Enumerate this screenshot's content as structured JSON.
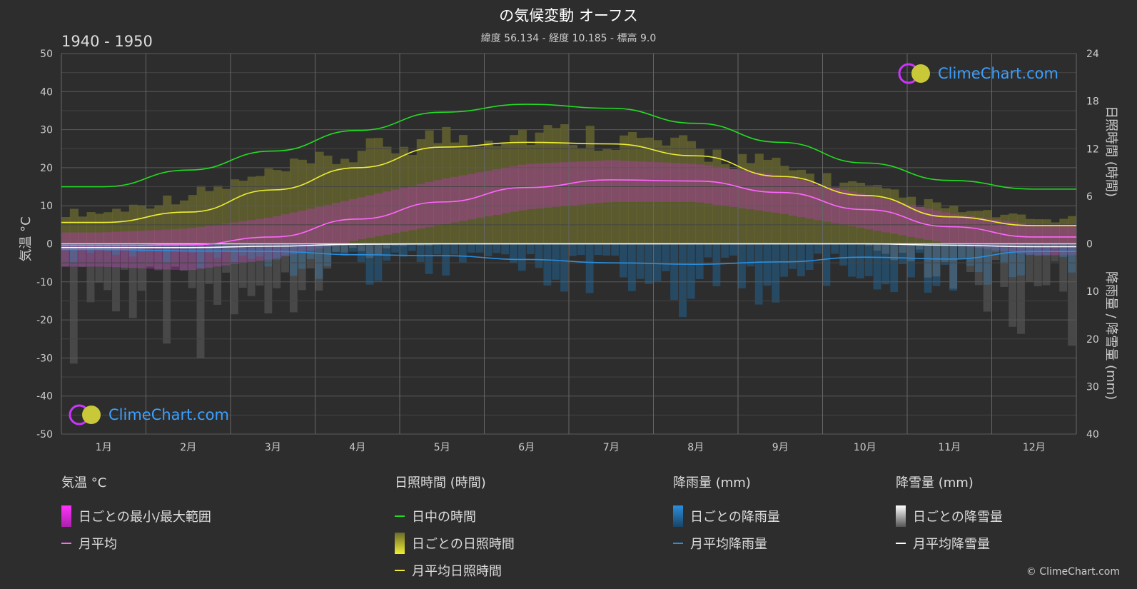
{
  "title": "の気候変動 オーフス",
  "subtitle": "緯度 56.134 - 経度 10.185 - 標高 9.0",
  "period": "1940 - 1950",
  "copyright": "© ClimeChart.com",
  "brand": "ClimeChart.com",
  "axes": {
    "left_label": "気温 °C",
    "right_top_label": "日照時間 (時間)",
    "right_bottom_label": "降雨量 / 降雪量 (mm)"
  },
  "legend": {
    "temp": {
      "title": "気温 °C",
      "range": "日ごとの最小/最大範囲",
      "mean": "月平均"
    },
    "sun": {
      "title": "日照時間 (時間)",
      "daylight": "日中の時間",
      "daily": "日ごとの日照時間",
      "mean": "月平均日照時間"
    },
    "rain": {
      "title": "降雨量 (mm)",
      "daily": "日ごとの降雨量",
      "mean": "月平均降雨量"
    },
    "snow": {
      "title": "降雪量 (mm)",
      "daily": "日ごとの降雪量",
      "mean": "月平均降雪量"
    }
  },
  "colors": {
    "daylight": "#22dd22",
    "sunshine_mean": "#eeee33",
    "sunshine_fill": "#b0b032",
    "temp_mean": "#ff66ff",
    "temp_range": "#cc33cc",
    "rain_mean": "#2a8fe0",
    "rain_daily": "#1f6fa8",
    "snow_mean": "#ffffff",
    "snow_daily": "#9a9a9a"
  },
  "chart_data": {
    "type": "line",
    "categories": [
      "1月",
      "2月",
      "3月",
      "4月",
      "5月",
      "6月",
      "7月",
      "8月",
      "9月",
      "10月",
      "11月",
      "12月"
    ],
    "y_left": {
      "min": -50,
      "max": 50,
      "ticks": [
        50,
        40,
        30,
        20,
        10,
        0,
        -10,
        -20,
        -30,
        -40,
        -50
      ]
    },
    "y_right_sun": {
      "min": 0,
      "max": 24,
      "ticks": [
        24,
        18,
        12,
        6,
        0
      ]
    },
    "y_right_precip": {
      "min": 0,
      "max": 40,
      "ticks": [
        0,
        10,
        20,
        30,
        40
      ]
    },
    "series": [
      {
        "name": "日中の時間",
        "axis": "sun_hours",
        "values": [
          7.2,
          9.3,
          11.7,
          14.3,
          16.6,
          17.6,
          17.1,
          15.2,
          12.8,
          10.2,
          8.0,
          6.9
        ]
      },
      {
        "name": "月平均日照時間",
        "axis": "sun_hours",
        "values": [
          2.7,
          4.0,
          6.8,
          9.6,
          12.2,
          12.8,
          12.6,
          11.1,
          8.5,
          6.1,
          3.4,
          2.3
        ]
      },
      {
        "name": "月平均",
        "axis": "temp_c",
        "values": [
          -0.5,
          -0.3,
          1.8,
          6.5,
          11.0,
          14.8,
          16.8,
          16.5,
          13.5,
          9.0,
          4.5,
          1.8
        ]
      },
      {
        "name": "月平均降雨量",
        "axis": "precip_mm",
        "values": [
          1.2,
          1.5,
          1.6,
          2.3,
          2.5,
          3.3,
          4.0,
          4.3,
          3.8,
          2.8,
          3.2,
          1.6
        ]
      },
      {
        "name": "月平均降雪量",
        "axis": "precip_mm",
        "values": [
          0.8,
          0.8,
          0.5,
          0.1,
          0,
          0,
          0,
          0,
          0,
          0,
          0.3,
          0.6
        ]
      }
    ],
    "daily_temp_range": {
      "min": [
        -6,
        -7,
        -4,
        1,
        5,
        9,
        11,
        11,
        8,
        4,
        0,
        -3
      ],
      "max": [
        3,
        4,
        7,
        12,
        17,
        21,
        22,
        21,
        18,
        13,
        8,
        5
      ]
    },
    "daily_sunshine_max": [
      4.5,
      7.0,
      10.0,
      13.0,
      15.5,
      16.0,
      15.5,
      13.5,
      11.0,
      8.0,
      5.0,
      3.5
    ]
  }
}
